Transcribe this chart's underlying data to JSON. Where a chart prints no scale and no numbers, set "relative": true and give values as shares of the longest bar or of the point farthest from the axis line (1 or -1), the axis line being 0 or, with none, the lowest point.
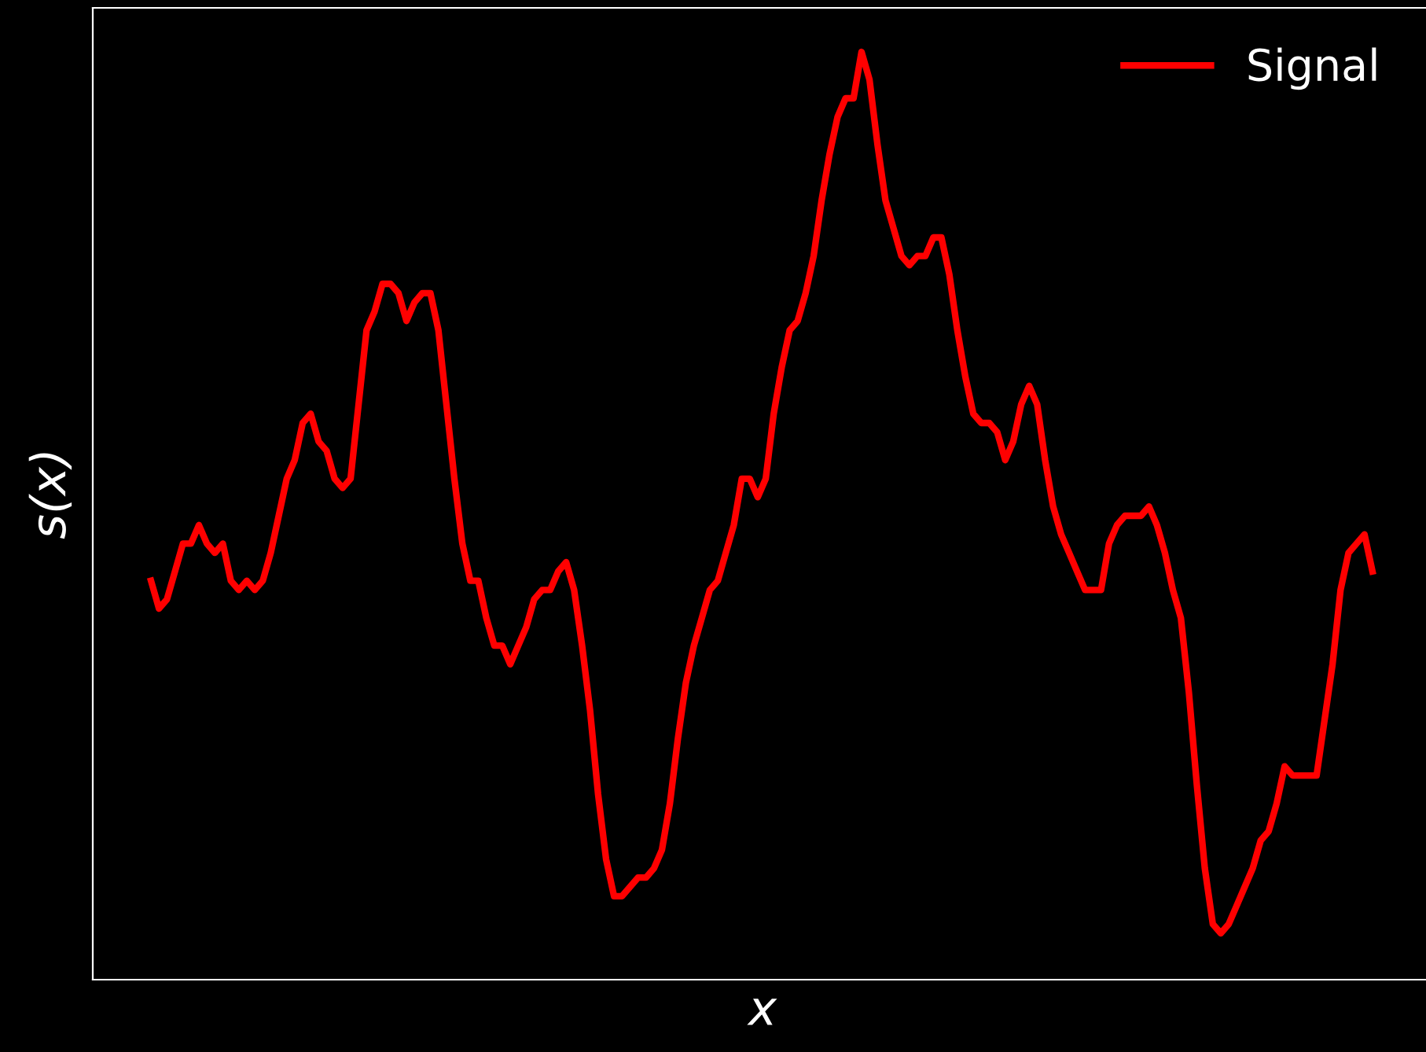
{
  "chart_data": {
    "type": "line",
    "relative": true,
    "xlabel": "x",
    "ylabel": "s(x)",
    "legend": "top right",
    "categories": [
      null,
      null,
      null,
      null,
      null,
      null,
      null,
      null,
      null,
      null,
      null,
      null,
      null,
      null,
      null,
      null,
      null,
      null,
      null,
      null,
      null,
      null,
      null,
      null,
      null,
      null,
      null,
      null,
      null,
      null,
      null,
      null,
      null,
      null,
      null,
      null,
      null,
      null,
      null,
      null,
      null,
      null,
      null,
      null,
      null,
      null,
      null,
      null,
      null,
      null,
      null,
      null,
      null,
      null,
      null,
      null,
      null,
      null,
      null,
      null,
      null,
      null,
      null,
      null,
      null,
      null,
      null,
      null,
      null,
      null,
      null,
      null,
      null,
      null,
      null,
      null,
      null,
      null,
      null,
      null,
      null,
      null,
      null,
      null,
      null,
      null,
      null,
      null,
      null,
      null,
      null,
      null,
      null,
      null,
      null,
      null,
      null,
      null,
      null,
      null,
      null,
      null,
      null,
      null,
      null,
      null,
      null,
      null,
      null,
      null,
      null,
      null,
      null,
      null,
      null,
      null,
      null,
      null,
      null,
      null,
      null,
      null,
      null,
      null,
      null,
      null,
      null,
      null,
      null,
      null,
      null,
      null,
      null,
      null,
      null,
      null,
      null,
      null,
      null,
      null,
      null,
      null,
      null,
      null,
      null,
      null,
      null,
      null,
      null,
      null,
      null,
      null,
      null,
      null
    ],
    "series": [
      {
        "name": "Signal",
        "color": "#ff0000",
        "values": [
          0.43,
          0.4,
          0.41,
          0.44,
          0.47,
          0.47,
          0.49,
          0.47,
          0.46,
          0.47,
          0.43,
          0.42,
          0.43,
          0.42,
          0.43,
          0.46,
          0.5,
          0.54,
          0.56,
          0.6,
          0.61,
          0.58,
          0.57,
          0.54,
          0.53,
          0.54,
          0.62,
          0.7,
          0.72,
          0.75,
          0.75,
          0.74,
          0.71,
          0.73,
          0.74,
          0.74,
          0.7,
          0.62,
          0.54,
          0.47,
          0.43,
          0.43,
          0.39,
          0.36,
          0.36,
          0.34,
          0.36,
          0.38,
          0.41,
          0.42,
          0.42,
          0.44,
          0.45,
          0.42,
          0.36,
          0.29,
          0.2,
          0.13,
          0.09,
          0.09,
          0.1,
          0.11,
          0.11,
          0.12,
          0.14,
          0.19,
          0.26,
          0.32,
          0.36,
          0.39,
          0.42,
          0.43,
          0.46,
          0.49,
          0.54,
          0.54,
          0.52,
          0.54,
          0.61,
          0.66,
          0.7,
          0.71,
          0.74,
          0.78,
          0.84,
          0.89,
          0.93,
          0.95,
          0.95,
          1,
          0.97,
          0.9,
          0.84,
          0.81,
          0.78,
          0.77,
          0.78,
          0.78,
          0.8,
          0.8,
          0.76,
          0.7,
          0.65,
          0.61,
          0.6,
          0.6,
          0.59,
          0.56,
          0.58,
          0.62,
          0.64,
          0.62,
          0.56,
          0.51,
          0.48,
          0.46,
          0.44,
          0.42,
          0.42,
          0.42,
          0.47,
          0.49,
          0.5,
          0.5,
          0.5,
          0.51,
          0.49,
          0.46,
          0.42,
          0.39,
          0.31,
          0.21,
          0.12,
          0.06,
          0.05,
          0.06,
          0.08,
          0.1,
          0.12,
          0.15,
          0.16,
          0.19,
          0.23,
          0.22,
          0.22,
          0.22,
          0.22,
          0.28,
          0.34,
          0.42,
          0.46,
          0.47,
          0.48,
          0.44
        ]
      }
    ]
  }
}
